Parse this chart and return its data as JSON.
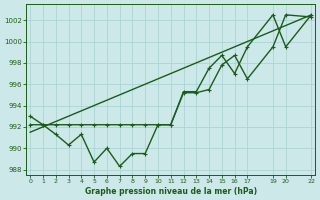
{
  "title": "Graphe pression niveau de la mer (hPa)",
  "bg_color": "#cce8e8",
  "line_color": "#1a5c1a",
  "grid_color": "#a8d0d0",
  "ylim": [
    987.5,
    1003.5
  ],
  "xlim": [
    -0.3,
    22.3
  ],
  "yticks": [
    988,
    990,
    992,
    994,
    996,
    998,
    1000,
    1002
  ],
  "x_ticks": [
    0,
    1,
    2,
    3,
    4,
    5,
    6,
    7,
    8,
    9,
    10,
    11,
    12,
    13,
    14,
    15,
    16,
    17,
    19,
    20,
    22
  ],
  "series1_x": [
    0,
    1,
    2,
    3,
    4,
    5,
    6,
    7,
    8,
    9,
    10,
    11,
    12,
    13,
    14,
    15,
    16,
    17,
    19,
    20,
    22
  ],
  "series1_y": [
    993.0,
    992.2,
    991.3,
    990.3,
    991.3,
    988.7,
    990.0,
    988.3,
    989.5,
    989.5,
    992.2,
    992.2,
    995.2,
    995.2,
    995.5,
    997.8,
    998.7,
    996.5,
    999.5,
    1002.5,
    1002.3
  ],
  "series2_x": [
    0,
    1,
    2,
    3,
    4,
    5,
    6,
    7,
    8,
    9,
    10,
    11,
    12,
    13,
    14,
    15,
    16,
    17,
    19,
    20,
    22
  ],
  "series2_y": [
    992.2,
    992.2,
    992.2,
    992.2,
    992.2,
    992.2,
    992.2,
    992.2,
    992.2,
    992.2,
    992.2,
    992.2,
    995.3,
    995.3,
    997.5,
    998.7,
    997.0,
    999.5,
    1002.5,
    999.5,
    1002.5
  ],
  "trend_x": [
    0,
    22
  ],
  "trend_y": [
    991.5,
    1002.5
  ],
  "marker_size": 2.5,
  "linewidth": 1.0
}
